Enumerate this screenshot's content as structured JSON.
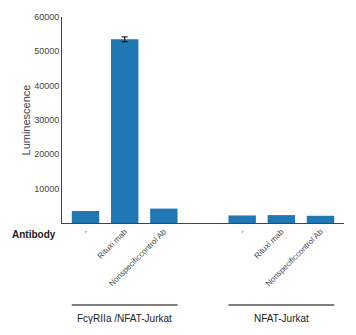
{
  "chart_data": {
    "type": "bar",
    "ylabel": "Luminescence",
    "xlabel": "Antibody",
    "groups": [
      {
        "label": "FcγRIIa /NFAT-Jurkat",
        "categories": [
          "-",
          "Rituxi mab",
          "Nonspecificcontrol Ab"
        ],
        "values": [
          3500,
          53500,
          4200
        ],
        "errors": [
          0,
          700,
          0
        ]
      },
      {
        "label": "NFAT-Jurkat",
        "categories": [
          "-",
          "Rituxi mab",
          "Nonspecificcontrol Ab"
        ],
        "values": [
          2200,
          2300,
          2100
        ],
        "errors": [
          0,
          0,
          0
        ]
      }
    ],
    "ylim": [
      0,
      60000
    ],
    "yticks": [
      10000,
      20000,
      30000,
      40000,
      50000,
      60000
    ],
    "grid": false
  }
}
